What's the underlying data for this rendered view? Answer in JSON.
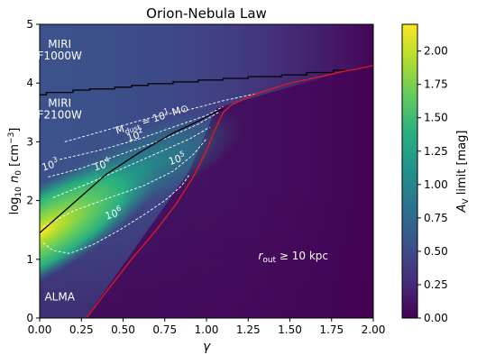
{
  "chart_data": {
    "type": "heatmap",
    "title": "Orion-Nebula Law",
    "xlabel": "γ",
    "ylabel": "log₁₀ n₀ [cm⁻³]",
    "xlim": [
      0,
      2
    ],
    "ylim": [
      0,
      5
    ],
    "xticks": [
      "0.00",
      "0.25",
      "0.50",
      "0.75",
      "1.00",
      "1.25",
      "1.50",
      "1.75",
      "2.00"
    ],
    "yticks": [
      "0",
      "1",
      "2",
      "3",
      "4",
      "5"
    ],
    "colorbar": {
      "label": "A_V limit [mag]",
      "range": [
        0,
        2.2
      ],
      "ticks": [
        "0.00",
        "0.25",
        "0.50",
        "0.75",
        "1.00",
        "1.25",
        "1.50",
        "1.75",
        "2.00"
      ],
      "colormap": "viridis"
    },
    "annotations": [
      {
        "text": "MIRI",
        "x": 0.12,
        "y": 4.6
      },
      {
        "text": "F1000W",
        "x": 0.12,
        "y": 4.4
      },
      {
        "text": "MIRI",
        "x": 0.12,
        "y": 3.6
      },
      {
        "text": "F2100W",
        "x": 0.12,
        "y": 3.4
      },
      {
        "text": "ALMA",
        "x": 0.12,
        "y": 0.3
      },
      {
        "text": "r_out ≥ 10 kpc",
        "x": 1.52,
        "y": 1.0
      }
    ],
    "contour_labels": [
      {
        "main": "M",
        "sub": "dust",
        "rest": " = 10",
        "sup": "1",
        "tail": " M⊙",
        "x": 0.68,
        "y": 3.33
      },
      {
        "main": "10",
        "sup": "2",
        "x": 0.58,
        "y": 3.05
      },
      {
        "main": "10",
        "sup": "3",
        "x": 0.07,
        "y": 2.55
      },
      {
        "main": "10",
        "sup": "4",
        "x": 0.38,
        "y": 2.55
      },
      {
        "main": "10",
        "sup": "5",
        "x": 0.83,
        "y": 2.65
      },
      {
        "main": "10",
        "sup": "6",
        "x": 0.45,
        "y": 1.72
      }
    ],
    "series": [
      {
        "name": "MIRI F1000W limit",
        "color": "#000000",
        "type": "step",
        "x": [
          0.0,
          0.04,
          0.04,
          0.2,
          0.2,
          0.3,
          0.3,
          0.45,
          0.45,
          0.55,
          0.55,
          0.65,
          0.65,
          0.8,
          0.8,
          0.95,
          0.95,
          1.1,
          1.1,
          1.25,
          1.25,
          1.45,
          1.45,
          1.6,
          1.6,
          1.76,
          1.76,
          1.83
        ],
        "y": [
          3.8,
          3.8,
          3.84,
          3.84,
          3.88,
          3.88,
          3.9,
          3.9,
          3.93,
          3.93,
          3.96,
          3.96,
          3.99,
          3.99,
          4.02,
          4.02,
          4.05,
          4.05,
          4.08,
          4.08,
          4.11,
          4.11,
          4.14,
          4.14,
          4.18,
          4.18,
          4.22,
          4.22
        ]
      },
      {
        "name": "MIRI F2100W limit",
        "color": "#000000",
        "type": "line",
        "x": [
          0.0,
          0.2,
          0.4,
          0.6,
          0.8,
          0.95,
          1.05,
          1.1
        ],
        "y": [
          1.45,
          1.95,
          2.45,
          2.82,
          3.15,
          3.35,
          3.5,
          3.56
        ]
      },
      {
        "name": "r_out = 10 kpc",
        "color": "#e41a1c",
        "type": "line",
        "x": [
          0.28,
          0.4,
          0.55,
          0.7,
          0.82,
          0.92,
          1.0,
          1.05,
          1.1,
          1.15,
          1.3,
          1.5,
          1.7,
          1.82,
          1.9,
          2.0
        ],
        "y": [
          0.0,
          0.45,
          1.0,
          1.5,
          1.95,
          2.4,
          2.85,
          3.2,
          3.5,
          3.63,
          3.82,
          4.0,
          4.12,
          4.2,
          4.24,
          4.3
        ]
      }
    ],
    "contours": [
      {
        "x": [
          0.15,
          0.4,
          0.65,
          0.9,
          1.1,
          1.3
        ],
        "y": [
          3.0,
          3.2,
          3.4,
          3.55,
          3.7,
          3.82
        ]
      },
      {
        "x": [
          0.12,
          0.35,
          0.6,
          0.85,
          1.0,
          1.1
        ],
        "y": [
          2.7,
          2.85,
          3.05,
          3.3,
          3.45,
          3.6
        ]
      },
      {
        "x": [
          0.05,
          0.25,
          0.5,
          0.75,
          0.95,
          1.07
        ],
        "y": [
          2.4,
          2.55,
          2.8,
          3.05,
          3.3,
          3.5
        ]
      },
      {
        "x": [
          0.08,
          0.3,
          0.5,
          0.7,
          0.9,
          1.02
        ],
        "y": [
          2.05,
          2.3,
          2.55,
          2.8,
          3.05,
          3.25
        ]
      },
      {
        "x": [
          0.02,
          0.2,
          0.42,
          0.62,
          0.8,
          0.92,
          1.0
        ],
        "y": [
          1.55,
          1.82,
          2.05,
          2.25,
          2.5,
          2.78,
          3.05
        ]
      },
      {
        "x": [
          0.02,
          0.08,
          0.18,
          0.32,
          0.48,
          0.62,
          0.75,
          0.85,
          0.9
        ],
        "y": [
          1.28,
          1.15,
          1.1,
          1.25,
          1.5,
          1.75,
          2.0,
          2.25,
          2.45
        ]
      }
    ]
  }
}
